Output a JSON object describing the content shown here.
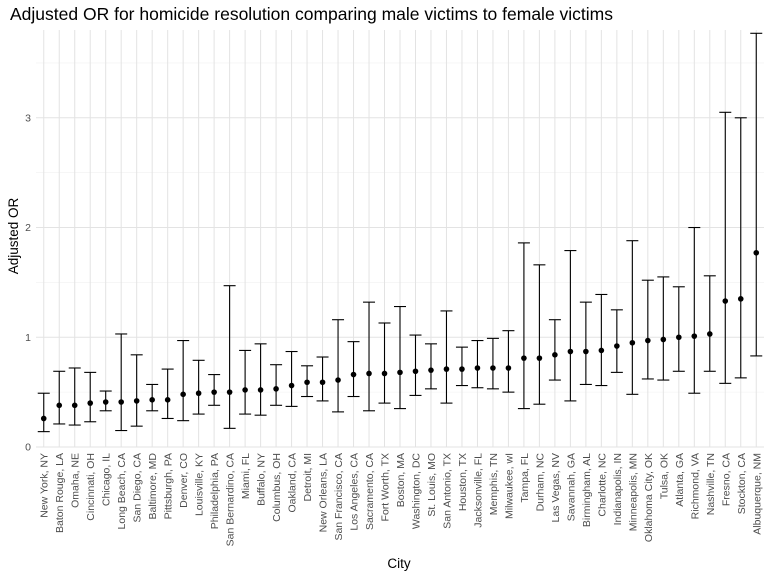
{
  "chart_data": {
    "type": "scatter",
    "title": "Adjusted OR for homicide resolution comparing male victims to female victims",
    "xlabel": "City",
    "ylabel": "Adjusted OR",
    "ylim": [
      0,
      3.8
    ],
    "yticks": [
      0,
      1,
      2,
      3
    ],
    "grid": true,
    "error_bars": true,
    "categories": [
      "New York, NY",
      "Baton Rouge, LA",
      "Omaha, NE",
      "Cincinnati, OH",
      "Chicago, IL",
      "Long Beach, CA",
      "San Diego, CA",
      "Baltimore, MD",
      "Pittsburgh, PA",
      "Denver, CO",
      "Louisville, KY",
      "Philadelphia, PA",
      "San Bernardino, CA",
      "Miami, FL",
      "Buffalo, NY",
      "Columbus, OH",
      "Oakland, CA",
      "Detroit, MI",
      "New Orleans, LA",
      "San Francisco, CA",
      "Los Angeles, CA",
      "Sacramento, CA",
      "Fort Worth, TX",
      "Boston, MA",
      "Washington, DC",
      "St. Louis, MO",
      "San Antonio, TX",
      "Houston, TX",
      "Jacksonville, FL",
      "Memphis, TN",
      "Milwaukee, wI",
      "Tampa, FL",
      "Durham, NC",
      "Las Vegas, NV",
      "Savannah, GA",
      "Birmingham, AL",
      "Charlotte, NC",
      "Indianapolis, IN",
      "Minneapolis, MN",
      "Oklahoma City, OK",
      "Tulsa, OK",
      "Atlanta, GA",
      "Richmond, VA",
      "Nashville, TN",
      "Fresno, CA",
      "Stockton, CA",
      "Albuquerque, NM"
    ],
    "or": [
      0.26,
      0.38,
      0.38,
      0.4,
      0.41,
      0.41,
      0.42,
      0.43,
      0.43,
      0.48,
      0.49,
      0.5,
      0.5,
      0.52,
      0.52,
      0.53,
      0.56,
      0.59,
      0.59,
      0.61,
      0.66,
      0.67,
      0.67,
      0.68,
      0.69,
      0.7,
      0.71,
      0.71,
      0.72,
      0.72,
      0.72,
      0.81,
      0.81,
      0.84,
      0.87,
      0.87,
      0.88,
      0.92,
      0.95,
      0.97,
      0.98,
      1.0,
      1.01,
      1.03,
      1.33,
      1.35,
      1.77
    ],
    "ci_low": [
      0.14,
      0.21,
      0.2,
      0.23,
      0.33,
      0.15,
      0.19,
      0.33,
      0.26,
      0.24,
      0.3,
      0.38,
      0.17,
      0.3,
      0.29,
      0.38,
      0.37,
      0.46,
      0.42,
      0.32,
      0.46,
      0.33,
      0.4,
      0.35,
      0.47,
      0.53,
      0.4,
      0.56,
      0.54,
      0.53,
      0.5,
      0.35,
      0.39,
      0.61,
      0.42,
      0.57,
      0.56,
      0.68,
      0.48,
      0.62,
      0.61,
      0.69,
      0.49,
      0.69,
      0.58,
      0.63,
      0.83
    ],
    "ci_high": [
      0.49,
      0.69,
      0.72,
      0.68,
      0.51,
      1.03,
      0.84,
      0.57,
      0.71,
      0.97,
      0.79,
      0.66,
      1.47,
      0.88,
      0.94,
      0.75,
      0.87,
      0.74,
      0.82,
      1.16,
      0.96,
      1.32,
      1.13,
      1.28,
      1.02,
      0.94,
      1.24,
      0.91,
      0.97,
      0.99,
      1.06,
      1.86,
      1.66,
      1.16,
      1.79,
      1.32,
      1.39,
      1.25,
      1.88,
      1.52,
      1.55,
      1.46,
      2.0,
      1.56,
      3.05,
      3.0,
      3.77
    ]
  }
}
